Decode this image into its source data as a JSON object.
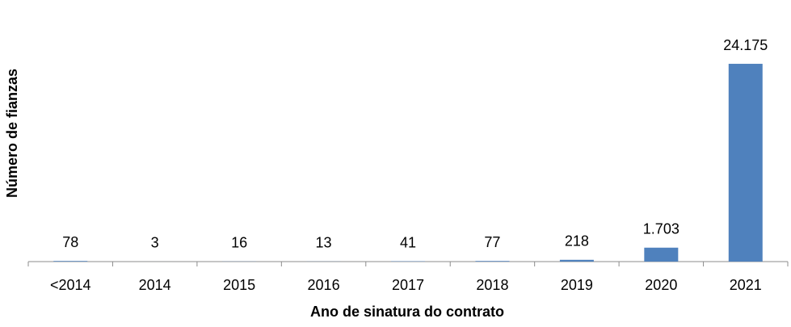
{
  "chart_data": {
    "type": "bar",
    "x_label": "Ano de sinatura do contrato",
    "y_label": "Número de fianzas",
    "categories": [
      "<2014",
      "2014",
      "2015",
      "2016",
      "2017",
      "2018",
      "2019",
      "2020",
      "2021"
    ],
    "values": [
      78,
      3,
      16,
      13,
      41,
      77,
      218,
      1703,
      24175
    ],
    "value_labels": [
      "78",
      "3",
      "16",
      "13",
      "41",
      "77",
      "218",
      "1.703",
      "24.175"
    ],
    "color": "#4f81bd",
    "ylim": [
      0,
      30000
    ]
  }
}
